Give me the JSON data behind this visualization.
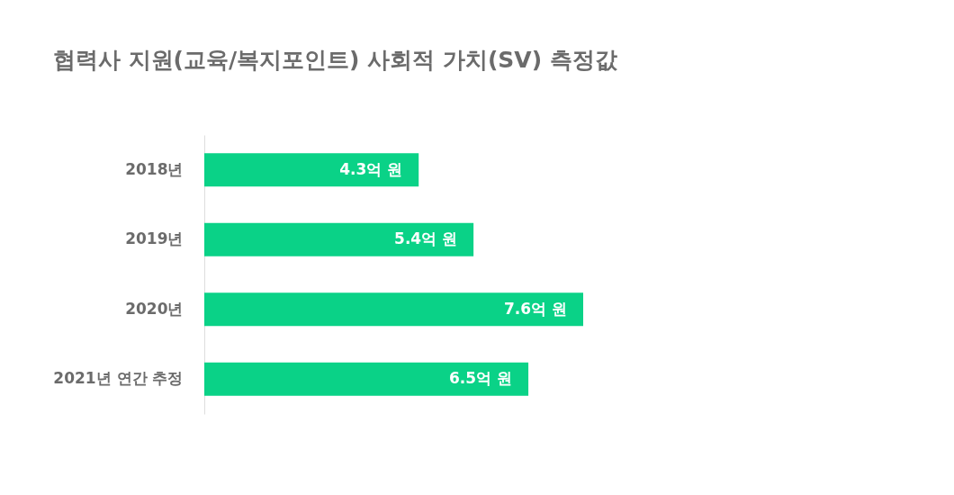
{
  "chart_data": {
    "type": "bar",
    "orientation": "horizontal",
    "title": "협력사 지원(교육/복지포인트) 사회적 가치(SV) 측정값",
    "categories": [
      "2018년",
      "2019년",
      "2020년",
      "2021년 연간 추정"
    ],
    "values": [
      4.3,
      5.4,
      7.6,
      6.5
    ],
    "value_labels": [
      "4.3억 원",
      "5.4억 원",
      "7.6억 원",
      "6.5억 원"
    ],
    "color": "#0ad287",
    "grid": false
  }
}
